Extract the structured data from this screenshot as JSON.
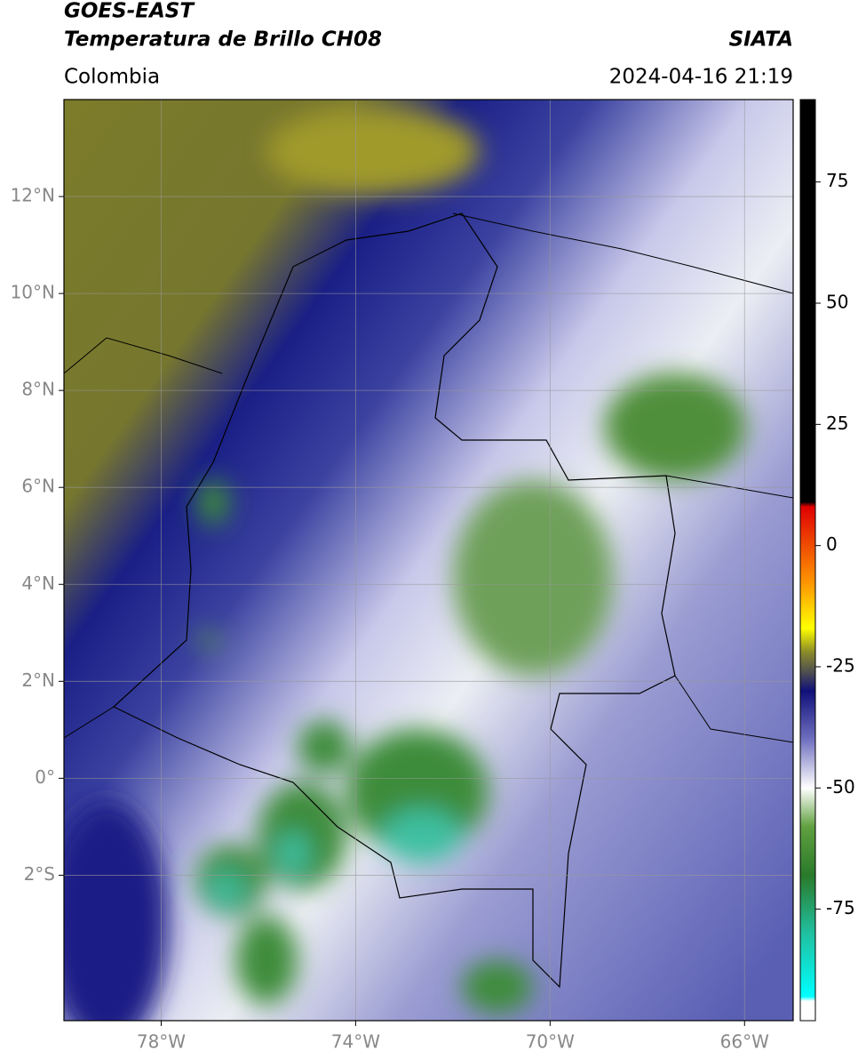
{
  "header": {
    "satellite": "GOES-EAST",
    "product": "Temperatura de Brillo CH08",
    "source": "SIATA",
    "region": "Colombia",
    "datetime": "2024-04-16 21:19"
  },
  "map": {
    "xlim": [
      -80,
      -65
    ],
    "ylim": [
      -5,
      14
    ],
    "xticks": [
      {
        "value": -78,
        "label": "78°W"
      },
      {
        "value": -74,
        "label": "74°W"
      },
      {
        "value": -70,
        "label": "70°W"
      },
      {
        "value": -66,
        "label": "66°W"
      }
    ],
    "yticks": [
      {
        "value": 12,
        "label": "12°N"
      },
      {
        "value": 10,
        "label": "10°N"
      },
      {
        "value": 8,
        "label": "8°N"
      },
      {
        "value": 6,
        "label": "6°N"
      },
      {
        "value": 4,
        "label": "4°N"
      },
      {
        "value": 2,
        "label": "2°N"
      },
      {
        "value": 0,
        "label": "0°"
      },
      {
        "value": -2,
        "label": "2°S"
      }
    ]
  },
  "colorbar": {
    "lim": [
      -98,
      92
    ],
    "ticks": [
      75,
      50,
      25,
      0,
      -25,
      -50,
      -75
    ],
    "colormap": [
      {
        "value": 92,
        "color": "#000000"
      },
      {
        "value": 9,
        "color": "#000000"
      },
      {
        "value": 8,
        "color": "#e00000"
      },
      {
        "value": -8,
        "color": "#ff9900"
      },
      {
        "value": -17,
        "color": "#ffff00"
      },
      {
        "value": -22,
        "color": "#8a8a2a"
      },
      {
        "value": -26,
        "color": "#505050"
      },
      {
        "value": -30,
        "color": "#10107a"
      },
      {
        "value": -40,
        "color": "#7070c0"
      },
      {
        "value": -50,
        "color": "#ffffff"
      },
      {
        "value": -58,
        "color": "#60a040"
      },
      {
        "value": -68,
        "color": "#2a7a2a"
      },
      {
        "value": -80,
        "color": "#20c0a0"
      },
      {
        "value": -93,
        "color": "#00ffff"
      },
      {
        "value": -94,
        "color": "#ffffff"
      },
      {
        "value": -98,
        "color": "#ffffff"
      }
    ]
  }
}
